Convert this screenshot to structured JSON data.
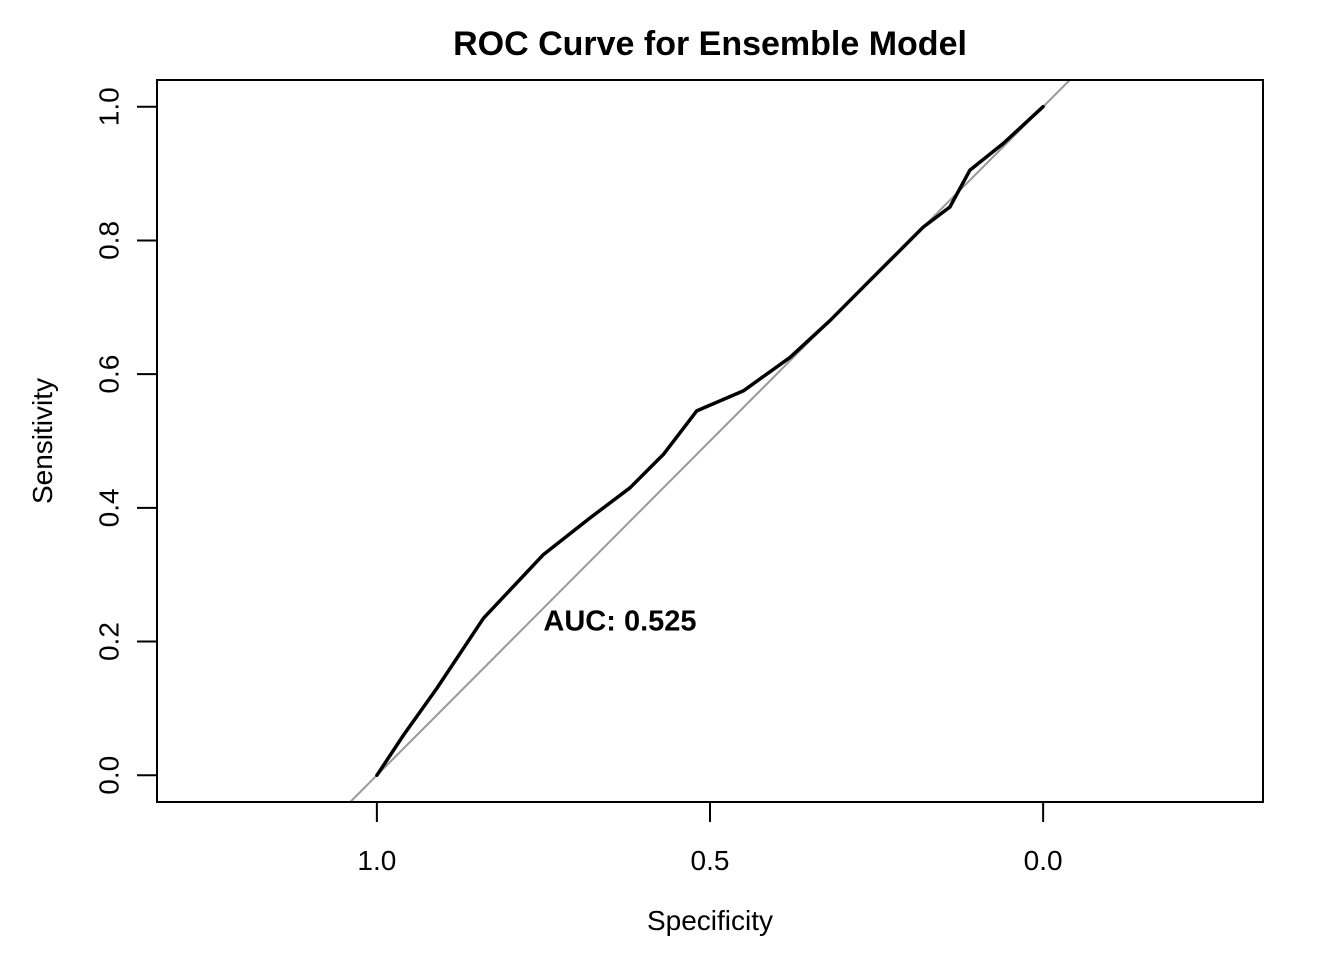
{
  "chart_data": {
    "type": "line",
    "title": "ROC Curve for Ensemble Model",
    "xlabel": "Specificity",
    "ylabel": "Sensitivity",
    "x_reversed": true,
    "xlim": [
      1.33,
      -0.33
    ],
    "ylim": [
      -0.04,
      1.04
    ],
    "x_ticks": [
      1.0,
      0.5,
      0.0
    ],
    "x_tick_labels": [
      "1.0",
      "0.5",
      "0.0"
    ],
    "y_ticks": [
      0.0,
      0.2,
      0.4,
      0.6,
      0.8,
      1.0
    ],
    "y_tick_labels": [
      "0.0",
      "0.2",
      "0.4",
      "0.6",
      "0.8",
      "1.0"
    ],
    "grid": false,
    "diagonal_color": "#999999",
    "curve_color": "#000000",
    "series": [
      {
        "x": [
          1.0,
          0.96,
          0.91,
          0.84,
          0.75,
          0.68,
          0.62,
          0.57,
          0.52,
          0.45,
          0.38,
          0.32,
          0.27,
          0.22,
          0.18,
          0.14,
          0.11,
          0.06,
          0.0
        ],
        "y": [
          0.0,
          0.06,
          0.13,
          0.235,
          0.33,
          0.385,
          0.43,
          0.48,
          0.545,
          0.575,
          0.625,
          0.68,
          0.73,
          0.78,
          0.82,
          0.85,
          0.905,
          0.945,
          1.0
        ]
      }
    ],
    "annotations": [
      {
        "text": "AUC: 0.525",
        "x": 0.75,
        "y": 0.23
      }
    ]
  }
}
